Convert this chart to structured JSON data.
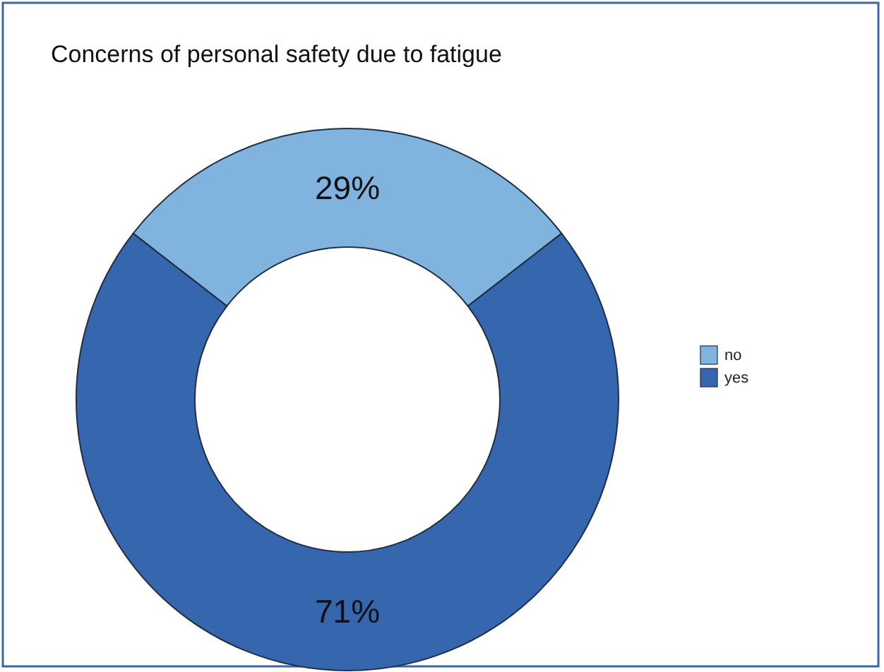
{
  "chart_data": {
    "type": "donut",
    "title": "Concerns of personal safety due to fatigue",
    "categories": [
      "no",
      "yes"
    ],
    "values": [
      29,
      71
    ],
    "colors": [
      "#80b3de",
      "#3566ae"
    ],
    "value_labels": [
      "29%",
      "71%"
    ],
    "legend": "right"
  }
}
